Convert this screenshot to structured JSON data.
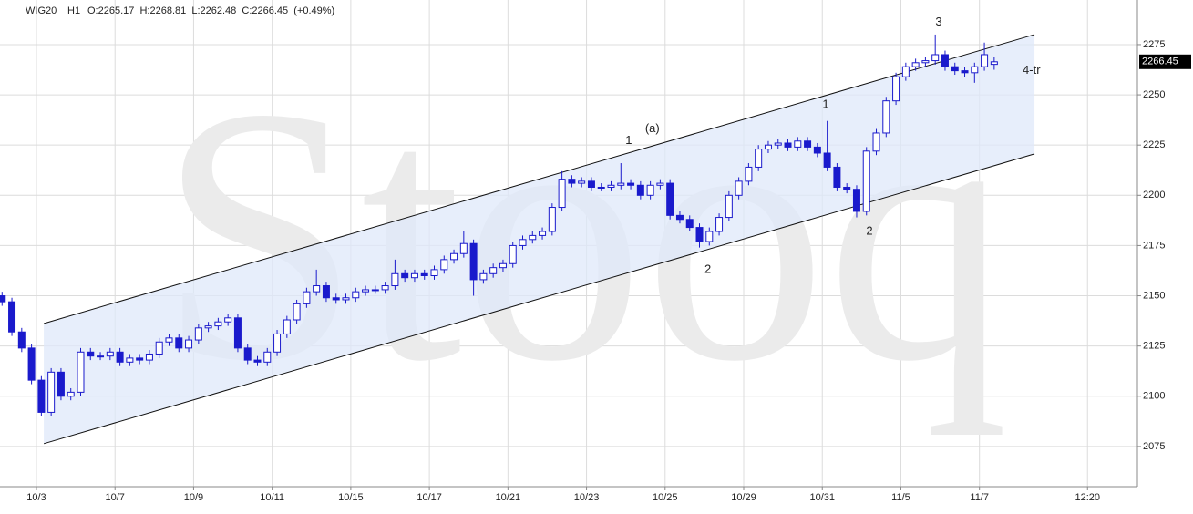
{
  "chart_data": {
    "type": "candlestick",
    "title": "WIG20",
    "interval": "H1",
    "ohlc_text": "O:2265.17  H:2268.81  L:2262.48  C:2266.45  (+0.49%)",
    "watermark": "Stooq",
    "color": "#1a1acc",
    "grid": true,
    "last_price": 2266.45,
    "xlim": [
      -7.42,
      224.16
    ],
    "xticks": [
      {
        "value": 0,
        "label": "10/3"
      },
      {
        "value": 16,
        "label": "10/7"
      },
      {
        "value": 32,
        "label": "10/9"
      },
      {
        "value": 48,
        "label": "10/11"
      },
      {
        "value": 64,
        "label": "10/15"
      },
      {
        "value": 80,
        "label": "10/17"
      },
      {
        "value": 96,
        "label": "10/21"
      },
      {
        "value": 112,
        "label": "10/23"
      },
      {
        "value": 128,
        "label": "10/25"
      },
      {
        "value": 144,
        "label": "10/29"
      },
      {
        "value": 160,
        "label": "10/31"
      },
      {
        "value": 176,
        "label": "11/5"
      },
      {
        "value": 192,
        "label": "11/7"
      },
      {
        "value": 214,
        "label": "12:20"
      }
    ],
    "ylim": [
      2055,
      2297.2
    ],
    "yticks": [
      2075,
      2100,
      2125,
      2150,
      2175,
      2200,
      2225,
      2250,
      2275
    ],
    "x": [
      -7,
      -5,
      -3,
      -1,
      1,
      3,
      5,
      7,
      9,
      11,
      13,
      15,
      17,
      19,
      21,
      23,
      25,
      27,
      29,
      31,
      33,
      35,
      37,
      39,
      41,
      43,
      45,
      47,
      49,
      51,
      53,
      55,
      57,
      59,
      61,
      63,
      65,
      67,
      69,
      71,
      73,
      75,
      77,
      79,
      81,
      83,
      85,
      87,
      89,
      91,
      93,
      95,
      97,
      99,
      101,
      103,
      105,
      107,
      109,
      111,
      113,
      115,
      117,
      119,
      121,
      123,
      125,
      127,
      129,
      131,
      133,
      135,
      137,
      139,
      141,
      143,
      145,
      147,
      149,
      151,
      153,
      155,
      157,
      159,
      161,
      163,
      165,
      167,
      169,
      171,
      173,
      175,
      177,
      179,
      181,
      183,
      185,
      187,
      189,
      191,
      193,
      195
    ],
    "open": [
      2150,
      2147,
      2132,
      2124,
      2108,
      2092,
      2112,
      2100,
      2102,
      2122,
      2120,
      2120,
      2122,
      2117,
      2119,
      2118,
      2121,
      2127,
      2129,
      2124,
      2128,
      2134,
      2135,
      2137,
      2139,
      2124,
      2118,
      2117,
      2122,
      2131,
      2138,
      2146,
      2152,
      2155,
      2149,
      2148,
      2149,
      2152,
      2153,
      2153,
      2155,
      2161,
      2159,
      2161,
      2160,
      2163,
      2168,
      2171,
      2176,
      2158,
      2161,
      2164,
      2166,
      2175,
      2178,
      2180,
      2182,
      2194,
      2208,
      2206,
      2207,
      2204,
      2204,
      2205,
      2206,
      2205,
      2200,
      2205,
      2206,
      2190,
      2188,
      2184,
      2177,
      2182,
      2189,
      2200,
      2207,
      2214,
      2223,
      2225,
      2226,
      2224,
      2227,
      2224,
      2221,
      2214,
      2204,
      2203,
      2192,
      2222,
      2231,
      2247,
      2259,
      2264,
      2266,
      2267,
      2270,
      2264,
      2262,
      2261,
      2264,
      2265.17
    ],
    "high": [
      2152,
      2149,
      2134,
      2126,
      2110,
      2114,
      2114,
      2104,
      2124,
      2124,
      2122,
      2124,
      2124,
      2121,
      2121,
      2123,
      2129,
      2131,
      2131,
      2130,
      2136,
      2137,
      2139,
      2141,
      2141,
      2126,
      2120,
      2124,
      2133,
      2140,
      2148,
      2154,
      2163,
      2157,
      2151,
      2151,
      2154,
      2155,
      2155,
      2157,
      2168,
      2163,
      2163,
      2163,
      2165,
      2170,
      2173,
      2182,
      2178,
      2163,
      2166,
      2168,
      2177,
      2180,
      2182,
      2184,
      2196,
      2212,
      2210,
      2209,
      2209,
      2206,
      2207,
      2216,
      2208,
      2207,
      2207,
      2208,
      2208,
      2192,
      2190,
      2186,
      2184,
      2191,
      2202,
      2209,
      2216,
      2225,
      2227,
      2228,
      2228,
      2229,
      2229,
      2226,
      2237,
      2216,
      2206,
      2205,
      2224,
      2233,
      2249,
      2261,
      2266,
      2268,
      2269,
      2280,
      2272,
      2266,
      2264,
      2266,
      2276,
      2268.81
    ],
    "low": [
      2145,
      2130,
      2122,
      2106,
      2090,
      2090,
      2098,
      2098,
      2100,
      2118,
      2118,
      2118,
      2115,
      2115,
      2116,
      2116,
      2119,
      2125,
      2122,
      2122,
      2126,
      2132,
      2133,
      2135,
      2122,
      2116,
      2115,
      2115,
      2120,
      2129,
      2136,
      2144,
      2150,
      2147,
      2146,
      2146,
      2147,
      2150,
      2151,
      2151,
      2153,
      2157,
      2157,
      2158,
      2158,
      2161,
      2166,
      2169,
      2150,
      2156,
      2159,
      2162,
      2164,
      2173,
      2176,
      2178,
      2180,
      2192,
      2204,
      2204,
      2202,
      2202,
      2202,
      2203,
      2203,
      2198,
      2198,
      2203,
      2188,
      2186,
      2182,
      2174,
      2175,
      2180,
      2187,
      2198,
      2205,
      2212,
      2221,
      2223,
      2222,
      2222,
      2222,
      2219,
      2212,
      2202,
      2201,
      2189,
      2190,
      2220,
      2229,
      2245,
      2257,
      2262,
      2264,
      2265,
      2262,
      2260,
      2259,
      2256,
      2262,
      2262.48
    ],
    "close": [
      2147,
      2132,
      2124,
      2108,
      2092,
      2112,
      2100,
      2102,
      2122,
      2120,
      2120,
      2122,
      2117,
      2119,
      2118,
      2121,
      2127,
      2129,
      2124,
      2128,
      2134,
      2135,
      2137,
      2139,
      2124,
      2118,
      2117,
      2122,
      2131,
      2138,
      2146,
      2152,
      2155,
      2149,
      2148,
      2149,
      2152,
      2153,
      2153,
      2155,
      2161,
      2159,
      2161,
      2160,
      2163,
      2168,
      2171,
      2176,
      2158,
      2161,
      2164,
      2166,
      2175,
      2178,
      2180,
      2182,
      2194,
      2208,
      2206,
      2207,
      2204,
      2204,
      2205,
      2206,
      2205,
      2200,
      2205,
      2206,
      2190,
      2188,
      2184,
      2177,
      2182,
      2189,
      2200,
      2207,
      2214,
      2223,
      2225,
      2226,
      2224,
      2227,
      2224,
      2221,
      2214,
      2204,
      2203,
      2192,
      2222,
      2231,
      2247,
      2259,
      2264,
      2266,
      2267,
      2270,
      2264,
      2262,
      2261,
      2264,
      2270,
      2266.45
    ],
    "channel": {
      "x": [
        1.5,
        203.2
      ],
      "upper": [
        2136.2,
        2280.0
      ],
      "lower": [
        2076.4,
        2220.6
      ],
      "color": "#dfe8fa"
    },
    "annotations": [
      {
        "text": "1",
        "x": 120.6,
        "y": 2227
      },
      {
        "text": "(a)",
        "x": 125.4,
        "y": 2233
      },
      {
        "text": "2",
        "x": 136.7,
        "y": 2163
      },
      {
        "text": "1",
        "x": 160.7,
        "y": 2245
      },
      {
        "text": "2",
        "x": 169.6,
        "y": 2182
      },
      {
        "text": "3",
        "x": 183.7,
        "y": 2286
      },
      {
        "text": "4-tr",
        "x": 202.6,
        "y": 2262
      }
    ]
  }
}
